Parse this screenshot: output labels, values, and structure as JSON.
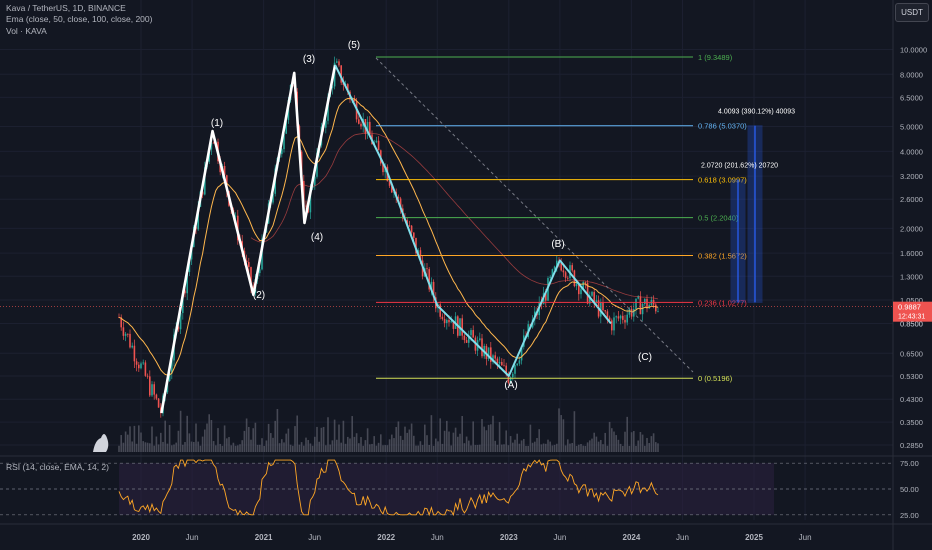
{
  "header": {
    "title": "Kava / TetherUS, 1D, BINANCE",
    "ema_legend": "Ema (close, 50, close, 100, close, 200)",
    "vol_legend": "Vol · KAVA",
    "currency_button": "USDT"
  },
  "rsi": {
    "legend": "RSI (14, close, EMA, 14, 2)",
    "levels": [
      "75.00",
      "50.00",
      "25.00"
    ]
  },
  "price_panel": {
    "y_ticks": [
      "10.0000",
      "8.0000",
      "6.5000",
      "5.0000",
      "4.0000",
      "3.2000",
      "2.6000",
      "2.0000",
      "1.6000",
      "1.3000",
      "1.0500",
      "0.8500",
      "0.6500",
      "0.5300",
      "0.4300",
      "0.3500",
      "0.2850"
    ],
    "current_price": "0.9887",
    "countdown": "12:43:31",
    "second_tag": "0.8500"
  },
  "x_axis": {
    "ticks": [
      "2020",
      "Jun",
      "2021",
      "Jun",
      "2022",
      "Jun",
      "2023",
      "Jun",
      "2024",
      "Jun",
      "2025",
      "Jun"
    ]
  },
  "fibonacci": [
    {
      "label": "1 (9.3489)",
      "color": "#4caf50"
    },
    {
      "label": "0.786 (5.0370)",
      "color": "#64b5f6"
    },
    {
      "label": "0.618 (3.0997)",
      "color": "#ffc107"
    },
    {
      "label": "0.5 (2.2040)",
      "color": "#4caf50"
    },
    {
      "label": "0.382 (1.5672)",
      "color": "#ffa726"
    },
    {
      "label": "0.236 (1.0277)",
      "color": "#f23645"
    },
    {
      "label": "0 (0.5196)",
      "color": "#d4e157"
    }
  ],
  "projections": [
    {
      "label": "4.0093 (390.12%) 40093"
    },
    {
      "label": "2.0720 (201.62%) 20720"
    }
  ],
  "wave_labels": [
    "(1)",
    "(2)",
    "(3)",
    "(4)",
    "(5)",
    "(A)",
    "(B)",
    "(C)"
  ],
  "colors": {
    "background": "#131722",
    "up": "#26a69a",
    "down": "#ef5350",
    "wave": "#ffffff",
    "correction": "#80deea",
    "ema50": "#ffb74d",
    "ema200": "#ef5350",
    "rsi": "#ffa726",
    "rsi_band": "#2a1f3d"
  },
  "chart_data": {
    "type": "line",
    "title": "Kava / TetherUS, 1D, BINANCE",
    "scale": "log",
    "ylim": [
      0.27,
      12
    ],
    "x_labels": [
      "2020",
      "Jun",
      "2021",
      "Jun",
      "2022",
      "Jun",
      "2023",
      "Jun",
      "2024",
      "Jun",
      "2025",
      "Jun"
    ],
    "elliott_wave": {
      "x": [
        "2020-03",
        "2020-08",
        "2020-12",
        "2021-04",
        "2021-05",
        "2021-08",
        "2022-01",
        "2022-06",
        "2023-01",
        "2023-06",
        "2023-11"
      ],
      "y": [
        0.38,
        4.8,
        1.1,
        8.1,
        2.1,
        8.7,
        3.4,
        1.0,
        0.53,
        1.5,
        0.85
      ],
      "labels": [
        "",
        "(1)",
        "(2)",
        "(3)",
        "(4)",
        "(5)",
        "",
        "",
        "(A)",
        "(B)",
        "(C)"
      ]
    },
    "series": [
      {
        "name": "Ema (close, 50, close, 100, close, 200)",
        "values": []
      }
    ],
    "fib_levels": [
      1,
      0.786,
      0.618,
      0.5,
      0.382,
      0.236,
      0
    ],
    "fib_prices": [
      9.3489,
      5.037,
      3.0997,
      2.204,
      1.5672,
      1.0277,
      0.5196
    ],
    "last_price": 0.9887,
    "rsi_range": [
      25,
      75
    ]
  }
}
